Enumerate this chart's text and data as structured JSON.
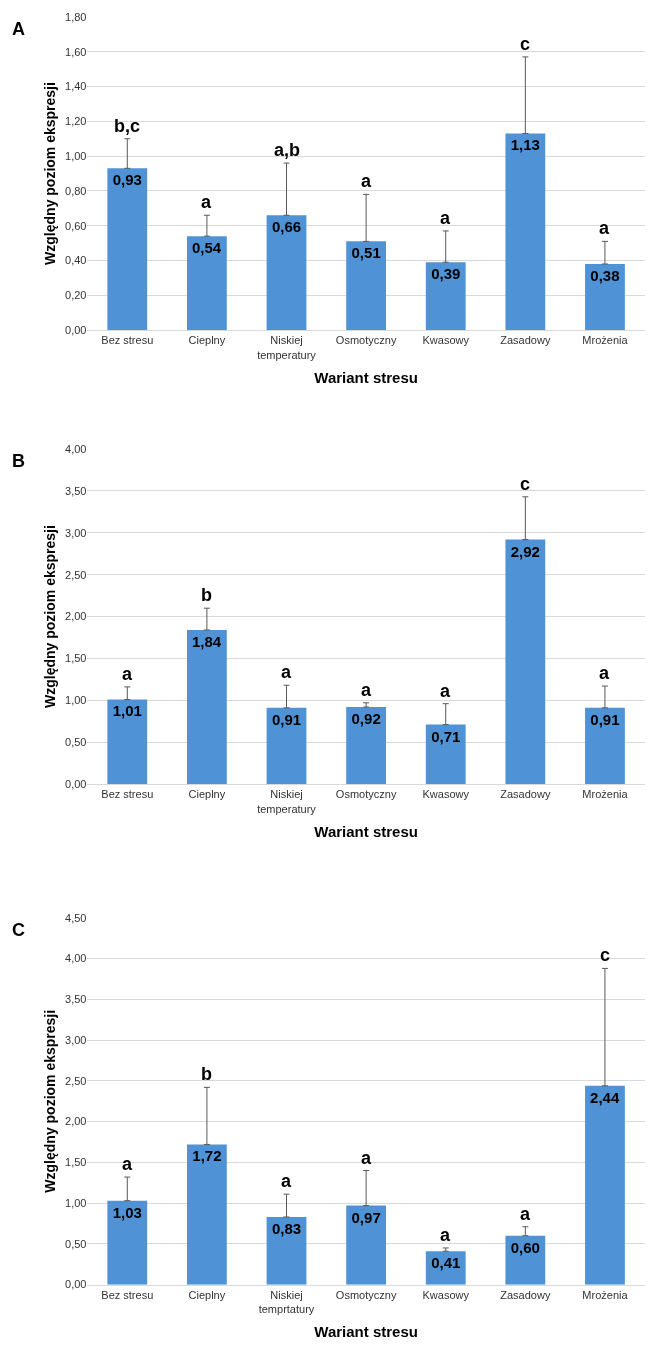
{
  "chart_data": [
    {
      "type": "bar",
      "title": "A",
      "xlabel": "Wariant stresu",
      "ylabel": "Względny poziom ekspresji",
      "color": "#4f93d6",
      "grid": "y",
      "categories": [
        "Bez stresu",
        "Cieplny",
        "Niskiej temperatury",
        "Osmotyczny",
        "Kwasowy",
        "Zasadowy",
        "Mrożenia"
      ],
      "values": [
        0.93,
        0.54,
        0.66,
        0.51,
        0.39,
        1.13,
        0.38
      ],
      "value_labels": [
        "0,93",
        "0,54",
        "0,66",
        "0,51",
        "0,39",
        "1,13",
        "0,38"
      ],
      "errors": [
        [
          0.93,
          1.1
        ],
        [
          0.54,
          0.66
        ],
        [
          0.66,
          0.96
        ],
        [
          0.51,
          0.78
        ],
        [
          0.39,
          0.57
        ],
        [
          1.13,
          1.57
        ],
        [
          0.38,
          0.51
        ]
      ],
      "annotations": [
        {
          "text": "b,c",
          "x": "Bez stresu",
          "y": 1.1
        },
        {
          "text": "a",
          "x": "Cieplny",
          "y": 0.66
        },
        {
          "text": "a,b",
          "x": "Niskiej temperatury",
          "y": 0.96
        },
        {
          "text": "a",
          "x": "Osmotyczny",
          "y": 0.78
        },
        {
          "text": "a",
          "x": "Kwasowy",
          "y": 0.57
        },
        {
          "text": "c",
          "x": "Zasadowy",
          "y": 1.57
        },
        {
          "text": "a",
          "x": "Mrożenia",
          "y": 0.51
        }
      ],
      "ylim": [
        0,
        1.8
      ],
      "yticks": [
        {
          "value": 0,
          "label": "0,00"
        },
        {
          "value": 0.2,
          "label": "0,20"
        },
        {
          "value": 0.4,
          "label": "0,40"
        },
        {
          "value": 0.6,
          "label": "0,60"
        },
        {
          "value": 0.8,
          "label": "0,80"
        },
        {
          "value": 1.0,
          "label": "1,00"
        },
        {
          "value": 1.2,
          "label": "1,20"
        },
        {
          "value": 1.4,
          "label": "1,40"
        },
        {
          "value": 1.6,
          "label": "1,60"
        },
        {
          "value": 1.8,
          "label": "1,80"
        }
      ]
    },
    {
      "type": "bar",
      "title": "B",
      "xlabel": "Wariant stresu",
      "ylabel": "Względny poziom ekspresji",
      "color": "#4f93d6",
      "grid": "y",
      "categories": [
        "Bez stresu",
        "Cieplny",
        "Niskiej temperatury",
        "Osmotyczny",
        "Kwasowy",
        "Zasadowy",
        "Mrożenia"
      ],
      "values": [
        1.01,
        1.84,
        0.91,
        0.92,
        0.71,
        2.92,
        0.91
      ],
      "value_labels": [
        "1,01",
        "1,84",
        "0,91",
        "0,92",
        "0,71",
        "2,92",
        "0,91"
      ],
      "errors": [
        [
          1.01,
          1.16
        ],
        [
          1.84,
          2.1
        ],
        [
          0.91,
          1.18
        ],
        [
          0.92,
          0.97
        ],
        [
          0.71,
          0.96
        ],
        [
          2.92,
          3.43
        ],
        [
          0.91,
          1.17
        ]
      ],
      "annotations": [
        {
          "text": "a",
          "x": "Bez stresu",
          "y": 1.16
        },
        {
          "text": "b",
          "x": "Cieplny",
          "y": 2.1
        },
        {
          "text": "a",
          "x": "Niskiej temperatury",
          "y": 1.18
        },
        {
          "text": "a",
          "x": "Osmotyczny",
          "y": 0.97
        },
        {
          "text": "a",
          "x": "Kwasowy",
          "y": 0.96
        },
        {
          "text": "c",
          "x": "Zasadowy",
          "y": 3.43
        },
        {
          "text": "a",
          "x": "Mrożenia",
          "y": 1.17
        }
      ],
      "ylim": [
        0,
        4.0
      ],
      "yticks": [
        {
          "value": 0,
          "label": "0,00"
        },
        {
          "value": 0.5,
          "label": "0,50"
        },
        {
          "value": 1.0,
          "label": "1,00"
        },
        {
          "value": 1.5,
          "label": "1,50"
        },
        {
          "value": 2.0,
          "label": "2,00"
        },
        {
          "value": 2.5,
          "label": "2,50"
        },
        {
          "value": 3.0,
          "label": "3,00"
        },
        {
          "value": 3.5,
          "label": "3,50"
        },
        {
          "value": 4.0,
          "label": "4,00"
        }
      ]
    },
    {
      "type": "bar",
      "title": "C",
      "xlabel": "Wariant stresu",
      "ylabel": "Względny poziom ekspresji",
      "color": "#4f93d6",
      "grid": "y",
      "categories": [
        "Bez stresu",
        "Cieplny",
        "Niskiej temprtatury",
        "Osmotyczny",
        "Kwasowy",
        "Zasadowy",
        "Mrożenia"
      ],
      "values": [
        1.03,
        1.72,
        0.83,
        0.97,
        0.41,
        0.6,
        2.44
      ],
      "value_labels": [
        "1,03",
        "1,72",
        "0,83",
        "0,97",
        "0,41",
        "0,60",
        "2,44"
      ],
      "errors": [
        [
          1.03,
          1.32
        ],
        [
          1.72,
          2.42
        ],
        [
          0.83,
          1.11
        ],
        [
          0.97,
          1.4
        ],
        [
          0.41,
          0.45
        ],
        [
          0.6,
          0.71
        ],
        [
          2.44,
          3.88
        ]
      ],
      "annotations": [
        {
          "text": "a",
          "x": "Bez stresu",
          "y": 1.32
        },
        {
          "text": "b",
          "x": "Cieplny",
          "y": 2.42
        },
        {
          "text": "a",
          "x": "Niskiej temprtatury",
          "y": 1.11
        },
        {
          "text": "a",
          "x": "Osmotyczny",
          "y": 1.4
        },
        {
          "text": "a",
          "x": "Kwasowy",
          "y": 0.45
        },
        {
          "text": "a",
          "x": "Zasadowy",
          "y": 0.71
        },
        {
          "text": "c",
          "x": "Mrożenia",
          "y": 3.88
        }
      ],
      "ylim": [
        0,
        4.5
      ],
      "yticks": [
        {
          "value": 0,
          "label": "0,00"
        },
        {
          "value": 0.5,
          "label": "0,50"
        },
        {
          "value": 1.0,
          "label": "1,00"
        },
        {
          "value": 1.5,
          "label": "1,50"
        },
        {
          "value": 2.0,
          "label": "2,00"
        },
        {
          "value": 2.5,
          "label": "2,50"
        },
        {
          "value": 3.0,
          "label": "3,00"
        },
        {
          "value": 3.5,
          "label": "3,50"
        },
        {
          "value": 4.0,
          "label": "4,00"
        },
        {
          "value": 4.5,
          "label": "4,50"
        }
      ]
    }
  ]
}
